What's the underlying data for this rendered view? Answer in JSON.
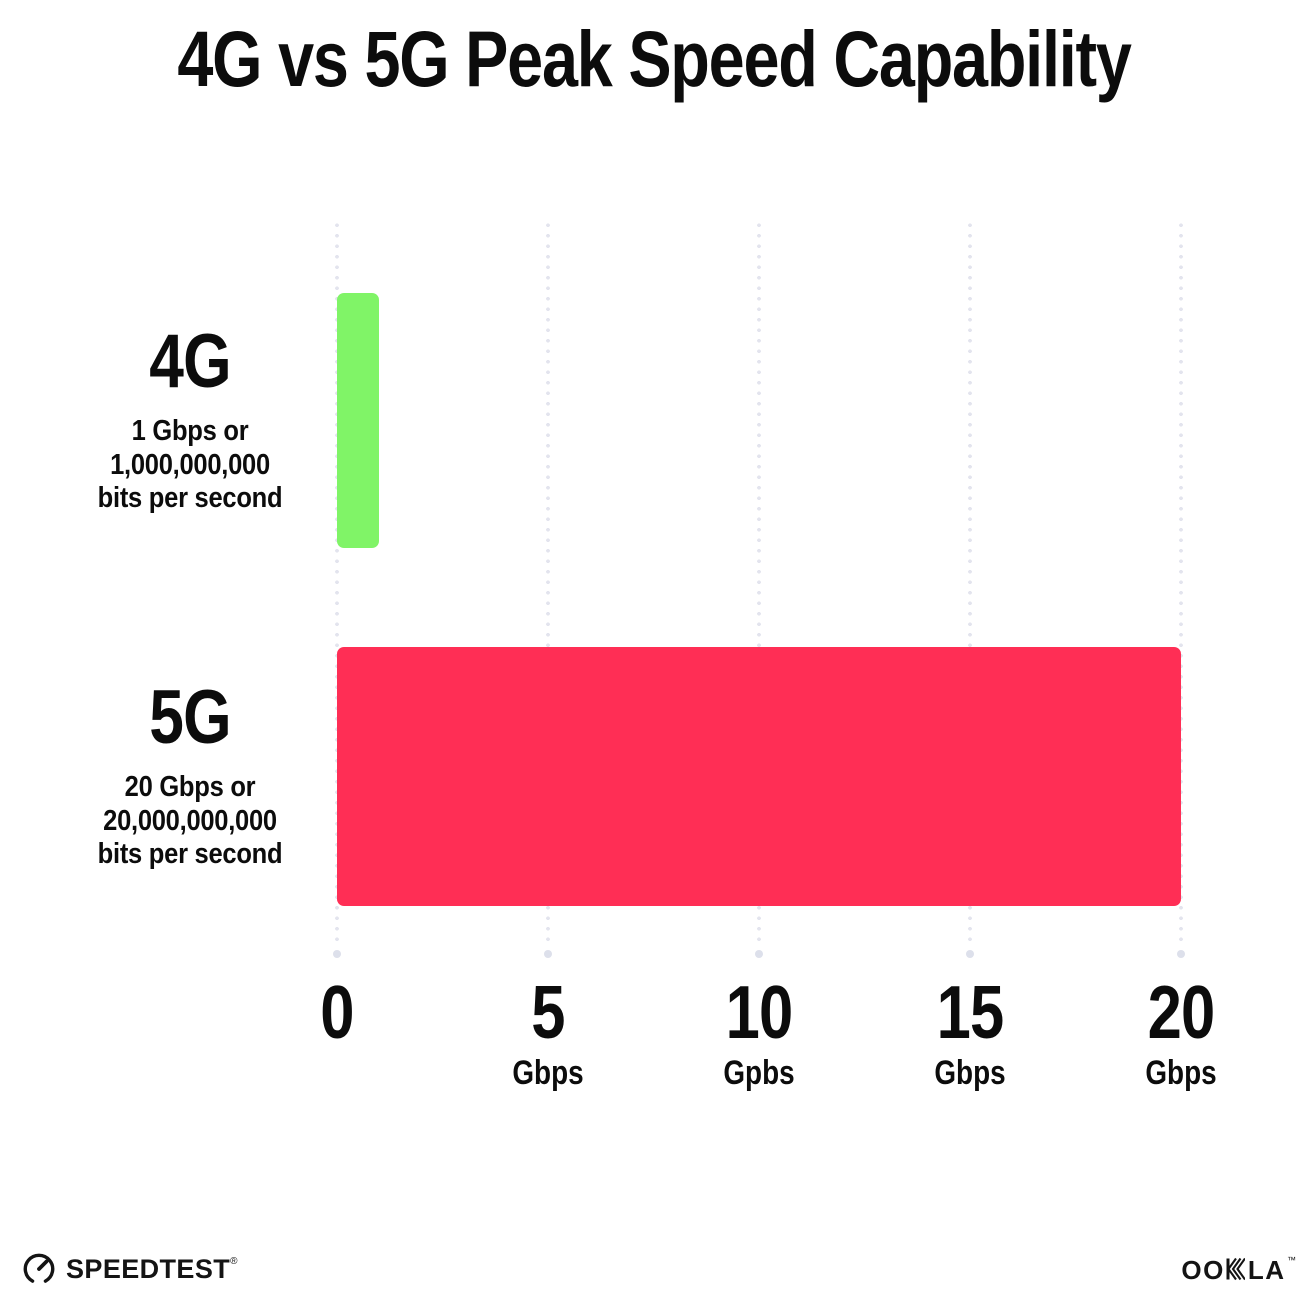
{
  "title": "4G vs 5G Peak Speed Capability",
  "chart_data": {
    "type": "bar",
    "orientation": "horizontal",
    "title": "4G vs 5G Peak Speed Capability",
    "categories": [
      "4G",
      "5G"
    ],
    "values": [
      1,
      20
    ],
    "value_unit": "Gbps",
    "xlim": [
      0,
      20
    ],
    "grid": "dotted-vertical-gridlines",
    "legend": "none",
    "bars": [
      {
        "label": "4G",
        "sublabel_lines": [
          "1 Gbps or",
          "1,000,000,000",
          "bits per second"
        ],
        "value": 1,
        "color": "#80F467"
      },
      {
        "label": "5G",
        "sublabel_lines": [
          "20 Gbps or",
          "20,000,000,000",
          "bits per second"
        ],
        "value": 20,
        "color": "#FF2E55"
      }
    ],
    "x_ticks": [
      {
        "value": 0,
        "label": "0",
        "unit": ""
      },
      {
        "value": 5,
        "label": "5",
        "unit": "Gbps"
      },
      {
        "value": 10,
        "label": "10",
        "unit": "Gpbs"
      },
      {
        "value": 15,
        "label": "15",
        "unit": "Gbps"
      },
      {
        "value": 20,
        "label": "20",
        "unit": "Gbps"
      }
    ]
  },
  "footer": {
    "speedtest_wordmark": "SPEEDTEST",
    "speedtest_trademark": "®",
    "ookla_oo": "OO",
    "ookla_la": "LA",
    "ookla_trademark": "™"
  },
  "colors": {
    "bar_4g": "#80F467",
    "bar_5g": "#FF2E55",
    "grid_dot": "#E3E4EE",
    "grid_end_dot": "#DDE0EB",
    "text": "#0C0C0C",
    "background": "#FFFFFF"
  }
}
